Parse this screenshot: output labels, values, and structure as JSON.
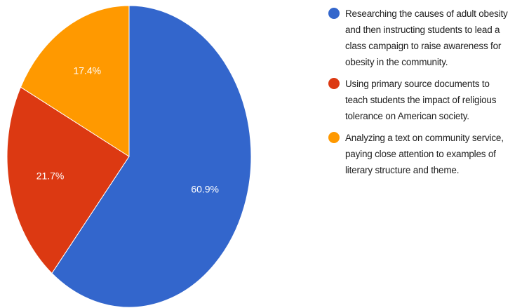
{
  "chart_data": {
    "type": "pie",
    "series": [
      {
        "name": "Researching the causes of adult obesity and then instructing students to lead a class campaign to raise awareness for obesity in the community.",
        "color": "#3366cc"
      },
      {
        "name": "Using primary source documents to teach students the impact of religious tolerance on American society.",
        "color": "#dc3912"
      },
      {
        "name": "Analyzing a text on community service, paying close attention to examples of literary structure and theme.",
        "color": "#ff9900"
      }
    ],
    "values": [
      60.9,
      21.7,
      17.4
    ],
    "value_labels": [
      "60.9%",
      "21.7%",
      "17.4%"
    ],
    "legend": "right"
  }
}
